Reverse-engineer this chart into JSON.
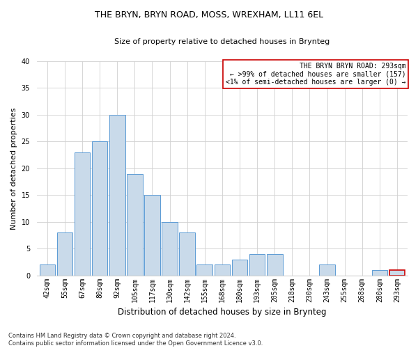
{
  "title": "THE BRYN, BRYN ROAD, MOSS, WREXHAM, LL11 6EL",
  "subtitle": "Size of property relative to detached houses in Brynteg",
  "xlabel": "Distribution of detached houses by size in Brynteg",
  "ylabel": "Number of detached properties",
  "categories": [
    "42sqm",
    "55sqm",
    "67sqm",
    "80sqm",
    "92sqm",
    "105sqm",
    "117sqm",
    "130sqm",
    "142sqm",
    "155sqm",
    "168sqm",
    "180sqm",
    "193sqm",
    "205sqm",
    "218sqm",
    "230sqm",
    "243sqm",
    "255sqm",
    "268sqm",
    "280sqm",
    "293sqm"
  ],
  "values": [
    2,
    8,
    23,
    25,
    30,
    19,
    15,
    10,
    8,
    2,
    2,
    3,
    4,
    4,
    0,
    0,
    2,
    0,
    0,
    1,
    1
  ],
  "bar_color": "#c9daea",
  "bar_edge_color": "#5b9bd5",
  "highlight_bar_index": 20,
  "highlight_bar_edge_color": "#cc0000",
  "ylim": [
    0,
    40
  ],
  "yticks": [
    0,
    5,
    10,
    15,
    20,
    25,
    30,
    35,
    40
  ],
  "annotation_line1": "THE BRYN BRYN ROAD: 293sqm",
  "annotation_line2": "← >99% of detached houses are smaller (157)",
  "annotation_line3": "<1% of semi-detached houses are larger (0) →",
  "annotation_box_edgecolor": "#cc0000",
  "footer_line1": "Contains HM Land Registry data © Crown copyright and database right 2024.",
  "footer_line2": "Contains public sector information licensed under the Open Government Licence v3.0.",
  "background_color": "#ffffff",
  "grid_color": "#d0d0d0",
  "title_fontsize": 9,
  "subtitle_fontsize": 8,
  "ylabel_fontsize": 8,
  "xlabel_fontsize": 8.5,
  "tick_fontsize": 7,
  "annotation_fontsize": 7,
  "footer_fontsize": 6
}
